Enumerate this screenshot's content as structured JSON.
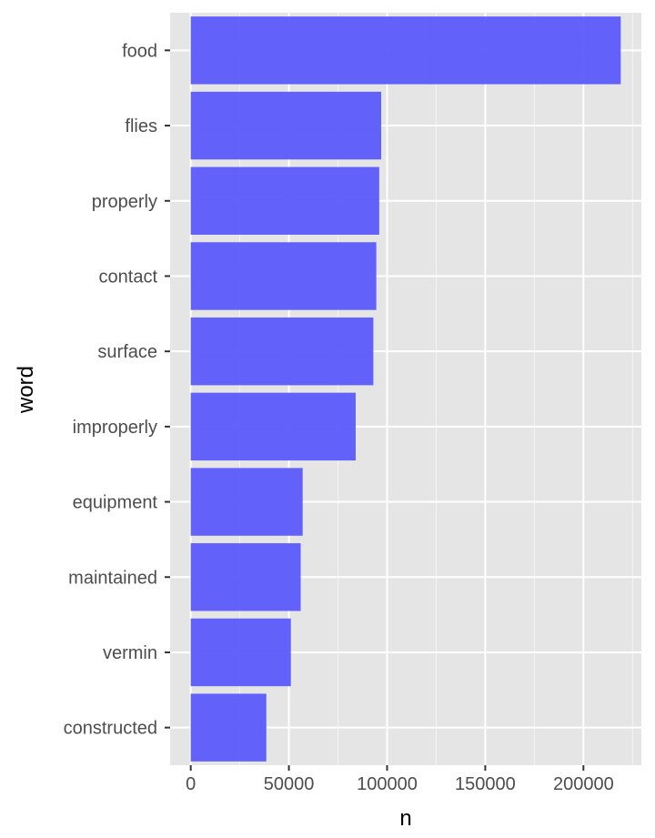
{
  "chart_data": {
    "type": "bar",
    "orientation": "horizontal",
    "categories": [
      "food",
      "flies",
      "properly",
      "contact",
      "surface",
      "improperly",
      "equipment",
      "maintained",
      "vermin",
      "constructed"
    ],
    "values": [
      219000,
      97000,
      96000,
      94500,
      93000,
      84000,
      57000,
      56000,
      51000,
      38500
    ],
    "xlabel": "n",
    "ylabel": "word",
    "xlim": [
      -10500,
      229500
    ],
    "x_ticks": [
      0,
      50000,
      100000,
      150000,
      200000
    ],
    "x_tick_labels": [
      "0",
      "50000",
      "100000",
      "150000",
      "200000"
    ],
    "grid": true,
    "colors": {
      "bar": "#5b5bfb",
      "panel": "#e5e5e5",
      "grid": "#ffffff"
    }
  }
}
